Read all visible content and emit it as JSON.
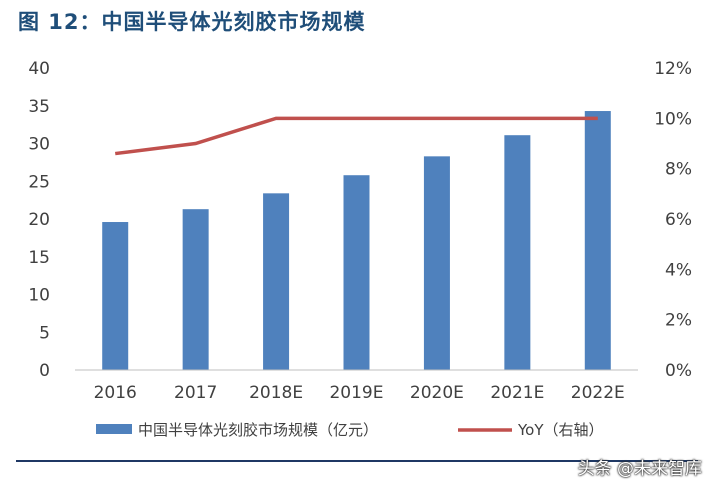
{
  "title": "图 12：中国半导体光刻胶市场规模",
  "watermark": "头条 @未来智库",
  "colors": {
    "bar": "#4f81bd",
    "line": "#c0504d",
    "title": "#1f4e79"
  },
  "chart_data": {
    "type": "bar",
    "categories": [
      "2016",
      "2017",
      "2018E",
      "2019E",
      "2020E",
      "2021E",
      "2022E"
    ],
    "series": [
      {
        "name": "中国半导体光刻胶市场规模（亿元）",
        "type": "bar",
        "axis": "left",
        "values": [
          19.6,
          21.3,
          23.4,
          25.8,
          28.3,
          31.1,
          34.3
        ]
      },
      {
        "name": "YoY（右轴）",
        "type": "line",
        "axis": "right",
        "values": [
          0.086,
          0.09,
          0.1,
          0.1,
          0.1,
          0.1,
          0.1
        ]
      }
    ],
    "y_left": {
      "min": 0,
      "max": 40,
      "ticks": [
        "0",
        "5",
        "10",
        "15",
        "20",
        "25",
        "30",
        "35",
        "40"
      ]
    },
    "y_right": {
      "min": 0,
      "max": 0.12,
      "ticks": [
        "0%",
        "2%",
        "4%",
        "6%",
        "8%",
        "10%",
        "12%"
      ]
    },
    "grid": false,
    "legend_position": "bottom"
  }
}
